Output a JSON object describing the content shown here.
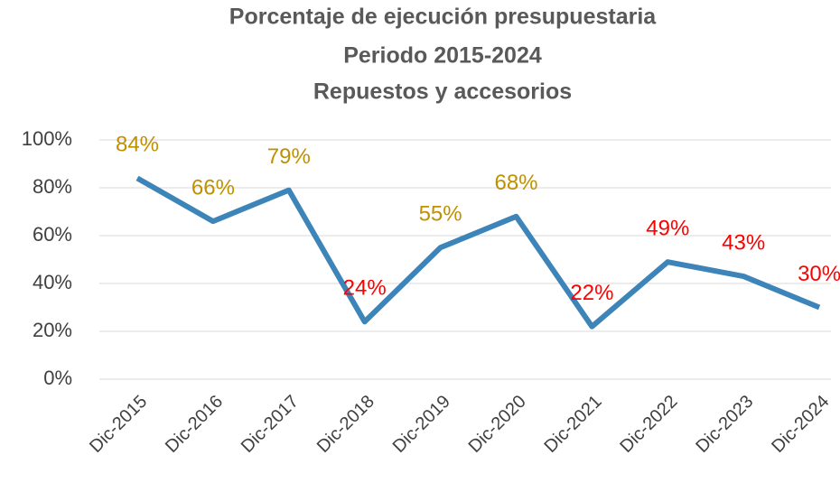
{
  "chart_data": {
    "type": "line",
    "title": [
      "Porcentaje de ejecución presupuestaria",
      "Periodo 2015-2024",
      "Repuestos y accesorios"
    ],
    "categories": [
      "Dic-2015",
      "Dic-2016",
      "Dic-2017",
      "Dic-2018",
      "Dic-2019",
      "Dic-2020",
      "Dic-2021",
      "Dic-2022",
      "Dic-2023",
      "Dic-2024"
    ],
    "values": [
      84,
      66,
      79,
      24,
      55,
      68,
      22,
      49,
      43,
      30
    ],
    "value_labels": [
      "84%",
      "66%",
      "79%",
      "24%",
      "55%",
      "68%",
      "22%",
      "49%",
      "43%",
      "30%"
    ],
    "value_label_colors": [
      "#bf9000",
      "#bf9000",
      "#bf9000",
      "#ff0000",
      "#bf9000",
      "#bf9000",
      "#ff0000",
      "#ff0000",
      "#ff0000",
      "#ff0000"
    ],
    "color": "#3d85b8",
    "ylim": [
      0,
      100
    ],
    "yticks": [
      {
        "value": 0,
        "label": "0%"
      },
      {
        "value": 20,
        "label": "20%"
      },
      {
        "value": 40,
        "label": "40%"
      },
      {
        "value": 60,
        "label": "60%"
      },
      {
        "value": 80,
        "label": "80%"
      },
      {
        "value": 100,
        "label": "100%"
      }
    ],
    "grid": true
  }
}
